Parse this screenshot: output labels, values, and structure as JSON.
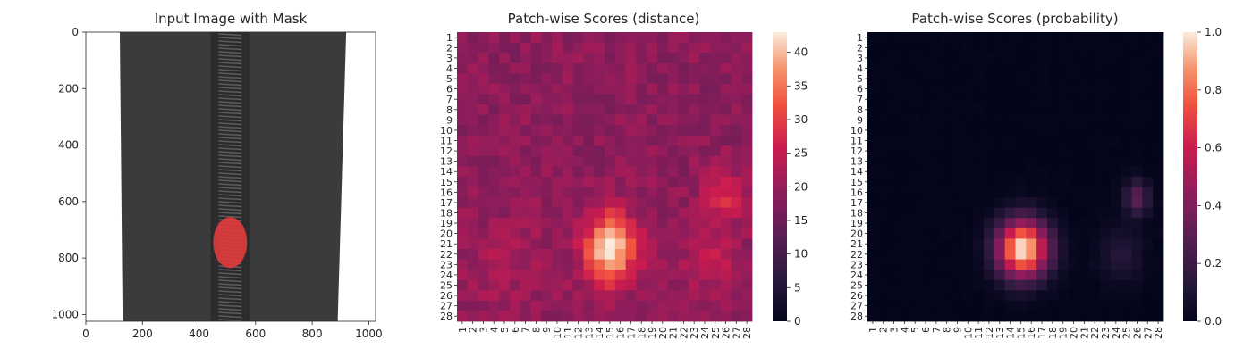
{
  "colors": {
    "heatmap_low": "#03051a",
    "heatmap_mid": "#cb1b4f",
    "heatmap_high": "#faebdd",
    "fabric": "#3b3b3d",
    "zipper_teeth": "#5a5a5c",
    "mask": "#e23b3b"
  },
  "chart_data": [
    {
      "type": "image",
      "title": "Input Image with Mask",
      "xlim": [
        0,
        1024
      ],
      "ylim": [
        1024,
        0
      ],
      "xticks": [
        "0",
        "200",
        "400",
        "600",
        "800",
        "1000"
      ],
      "yticks": [
        "0",
        "200",
        "400",
        "600",
        "800",
        "1000"
      ],
      "xtick_values": [
        0,
        200,
        400,
        600,
        800,
        1000
      ],
      "ytick_values": [
        0,
        200,
        400,
        600,
        800,
        1000
      ],
      "fabric_left_x": [
        120,
        130
      ],
      "fabric_right_x": [
        920,
        890
      ],
      "zipper_center_x": 510,
      "mask_region": {
        "x_center": 510,
        "y_center": 745,
        "x_half": 60,
        "y_half": 90
      }
    },
    {
      "type": "heatmap",
      "title": "Patch-wise Scores (distance)",
      "colorbar": {
        "vmin": 0,
        "vmax": 43,
        "ticks": [
          "0",
          "5",
          "10",
          "15",
          "20",
          "25",
          "30",
          "35",
          "40"
        ]
      },
      "rows": [
        "1",
        "2",
        "3",
        "4",
        "5",
        "6",
        "7",
        "8",
        "9",
        "10",
        "11",
        "12",
        "13",
        "14",
        "15",
        "16",
        "17",
        "18",
        "19",
        "20",
        "21",
        "22",
        "23",
        "24",
        "25",
        "26",
        "27",
        "28"
      ],
      "cols": [
        "1",
        "2",
        "3",
        "4",
        "5",
        "6",
        "7",
        "8",
        "9",
        "10",
        "11",
        "12",
        "13",
        "14",
        "15",
        "16",
        "17",
        "18",
        "19",
        "20",
        "21",
        "22",
        "23",
        "24",
        "25",
        "26",
        "27",
        "28"
      ],
      "base": 19,
      "hotspots": [
        {
          "row": 21.5,
          "col": 15,
          "amp": 24,
          "sr": 2.4,
          "sc": 1.7
        },
        {
          "row": 16,
          "col": 26,
          "amp": 8,
          "sr": 1.6,
          "sc": 1.3
        },
        {
          "row": 22,
          "col": 24.5,
          "amp": 5,
          "sr": 3,
          "sc": 2
        },
        {
          "row": 23,
          "col": 5,
          "amp": 3,
          "sr": 3,
          "sc": 3
        }
      ]
    },
    {
      "type": "heatmap",
      "title": "Patch-wise Scores (probability)",
      "colorbar": {
        "vmin": 0,
        "vmax": 1,
        "ticks": [
          "0.0",
          "0.2",
          "0.4",
          "0.6",
          "0.8",
          "1.0"
        ]
      },
      "rows": [
        "1",
        "2",
        "3",
        "4",
        "5",
        "6",
        "7",
        "8",
        "9",
        "10",
        "11",
        "12",
        "13",
        "14",
        "15",
        "16",
        "17",
        "18",
        "19",
        "20",
        "21",
        "22",
        "23",
        "24",
        "25",
        "26",
        "27",
        "28"
      ],
      "cols": [
        "1",
        "2",
        "3",
        "4",
        "5",
        "6",
        "7",
        "8",
        "9",
        "10",
        "11",
        "12",
        "13",
        "14",
        "15",
        "16",
        "17",
        "18",
        "19",
        "20",
        "21",
        "22",
        "23",
        "24",
        "25",
        "26",
        "27",
        "28"
      ],
      "base": 0,
      "hotspots": [
        {
          "row": 21.5,
          "col": 15.2,
          "amp": 1.0,
          "sr": 2.0,
          "sc": 1.7
        },
        {
          "row": 16.5,
          "col": 26,
          "amp": 0.3,
          "sr": 1.2,
          "sc": 0.8
        },
        {
          "row": 22,
          "col": 24.5,
          "amp": 0.12,
          "sr": 2,
          "sc": 1.5
        }
      ]
    }
  ]
}
